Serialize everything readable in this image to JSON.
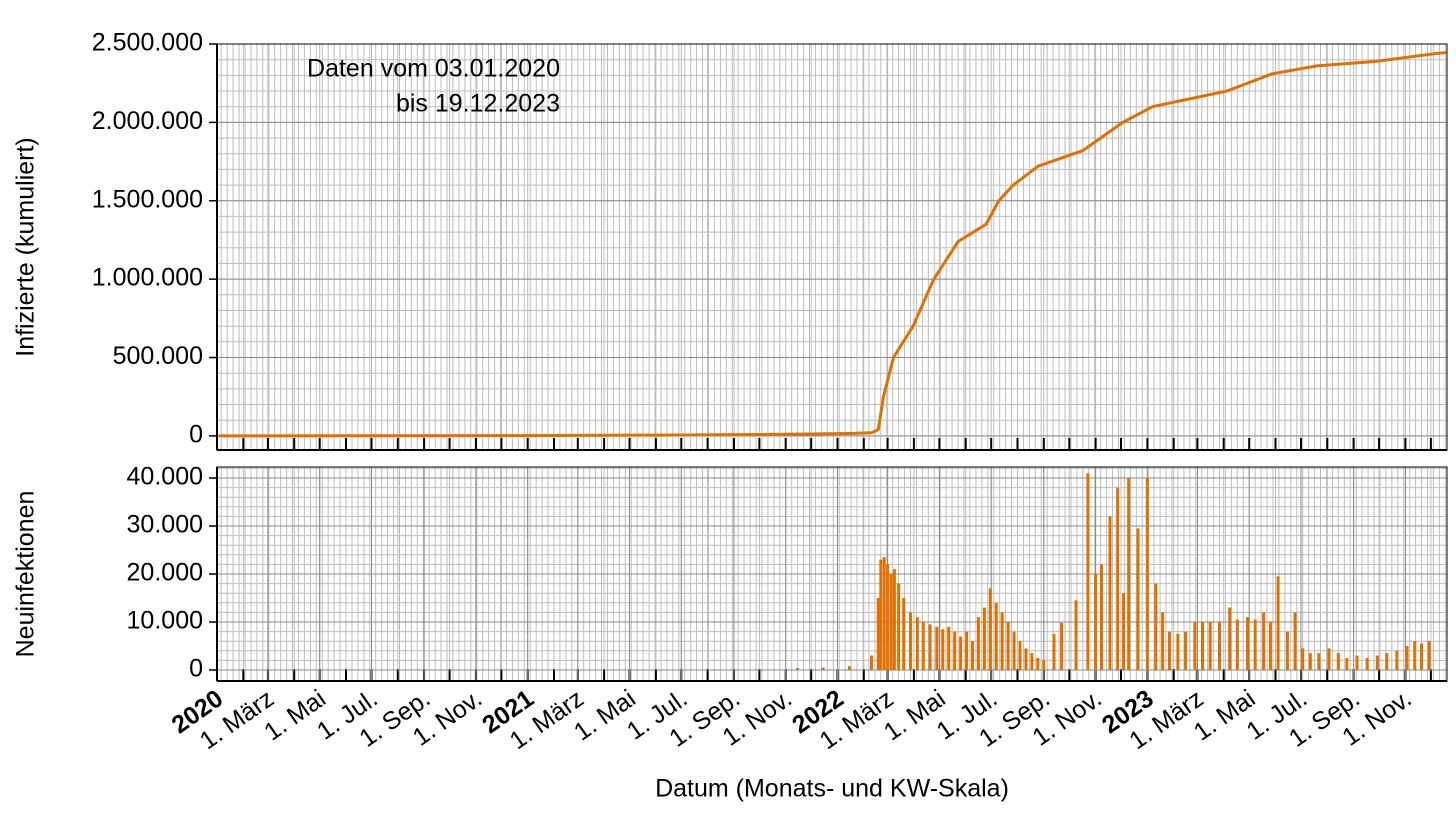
{
  "chart_data": [
    {
      "type": "line",
      "ylabel": "Infizierte (kumuliert)",
      "color": "#e07000",
      "annotation": [
        "Daten vom 03.01.2020",
        "bis 19.12.2023"
      ],
      "xlim": [
        "2020-01-01",
        "2023-12-20"
      ],
      "ylim": [
        -90000,
        2500000
      ],
      "yticks": [
        {
          "value": 0,
          "label": "0"
        },
        {
          "value": 500000,
          "label": "500.000"
        },
        {
          "value": 1000000,
          "label": "1.000.000"
        },
        {
          "value": 1500000,
          "label": "1.500.000"
        },
        {
          "value": 2000000,
          "label": "2.000.000"
        },
        {
          "value": 2500000,
          "label": "2.500.000"
        }
      ],
      "x": [
        "2020-01-03",
        "2020-06-01",
        "2021-01-01",
        "2021-06-01",
        "2021-11-01",
        "2022-01-15",
        "2022-02-10",
        "2022-02-18",
        "2022-02-24",
        "2022-03-08",
        "2022-03-31",
        "2022-04-24",
        "2022-05-23",
        "2022-06-25",
        "2022-07-10",
        "2022-07-27",
        "2022-08-25",
        "2022-10-17",
        "2022-12-03",
        "2023-01-07",
        "2023-04-05",
        "2023-05-28",
        "2023-07-20",
        "2023-09-29",
        "2023-12-08",
        "2023-12-19"
      ],
      "values": [
        0,
        500,
        2000,
        5000,
        10000,
        15000,
        20000,
        40000,
        250000,
        500000,
        700000,
        995000,
        1240000,
        1350000,
        1500000,
        1600000,
        1720000,
        1820000,
        2000000,
        2100000,
        2200000,
        2310000,
        2360000,
        2390000,
        2440000,
        2445000
      ]
    },
    {
      "type": "bar",
      "ylabel": "Neuinfektionen",
      "xlabel": "Datum (Monats- und KW-Skala)",
      "color": "#e07000",
      "xlim": [
        "2020-01-01",
        "2023-12-20"
      ],
      "ylim": [
        -2300,
        42300
      ],
      "yticks": [
        {
          "value": 0,
          "label": "0"
        },
        {
          "value": 10000,
          "label": "10.000"
        },
        {
          "value": 20000,
          "label": "20.000"
        },
        {
          "value": 30000,
          "label": "30.000"
        },
        {
          "value": 40000,
          "label": "40.000"
        }
      ],
      "xticks": [
        {
          "value": "2020-01-01",
          "label": "2020"
        },
        {
          "value": "2020-03-01",
          "label": "1. März"
        },
        {
          "value": "2020-05-01",
          "label": "1. Mai"
        },
        {
          "value": "2020-07-01",
          "label": "1. Jul."
        },
        {
          "value": "2020-09-01",
          "label": "1. Sep."
        },
        {
          "value": "2020-11-01",
          "label": "1. Nov."
        },
        {
          "value": "2021-01-01",
          "label": "2021"
        },
        {
          "value": "2021-03-01",
          "label": "1. März"
        },
        {
          "value": "2021-05-01",
          "label": "1. Mai"
        },
        {
          "value": "2021-07-01",
          "label": "1. Jul."
        },
        {
          "value": "2021-09-01",
          "label": "1. Sep."
        },
        {
          "value": "2021-11-01",
          "label": "1. Nov."
        },
        {
          "value": "2022-01-01",
          "label": "2022"
        },
        {
          "value": "2022-03-01",
          "label": "1. März"
        },
        {
          "value": "2022-05-01",
          "label": "1. Mai"
        },
        {
          "value": "2022-07-01",
          "label": "1. Jul."
        },
        {
          "value": "2022-09-01",
          "label": "1. Sep."
        },
        {
          "value": "2022-11-01",
          "label": "1. Nov."
        },
        {
          "value": "2023-01-01",
          "label": "2023"
        },
        {
          "value": "2023-03-01",
          "label": "1. März"
        },
        {
          "value": "2023-05-01",
          "label": "1. Mai"
        },
        {
          "value": "2023-07-01",
          "label": "1. Jul."
        },
        {
          "value": "2023-09-01",
          "label": "1. Sep."
        },
        {
          "value": "2023-11-01",
          "label": "1. Nov."
        }
      ],
      "x": [
        "2021-11-15",
        "2021-12-15",
        "2022-01-15",
        "2022-02-10",
        "2022-02-18",
        "2022-02-21",
        "2022-02-25",
        "2022-03-01",
        "2022-03-05",
        "2022-03-09",
        "2022-03-14",
        "2022-03-20",
        "2022-03-28",
        "2022-04-05",
        "2022-04-12",
        "2022-04-20",
        "2022-04-28",
        "2022-05-05",
        "2022-05-12",
        "2022-05-19",
        "2022-05-26",
        "2022-06-02",
        "2022-06-09",
        "2022-06-16",
        "2022-06-23",
        "2022-06-30",
        "2022-07-07",
        "2022-07-14",
        "2022-07-21",
        "2022-07-28",
        "2022-08-04",
        "2022-08-11",
        "2022-08-18",
        "2022-08-25",
        "2022-09-01",
        "2022-09-13",
        "2022-09-22",
        "2022-10-09",
        "2022-10-23",
        "2022-11-01",
        "2022-11-08",
        "2022-11-18",
        "2022-11-27",
        "2022-12-04",
        "2022-12-10",
        "2022-12-21",
        "2023-01-01",
        "2023-01-11",
        "2023-01-19",
        "2023-01-27",
        "2023-02-06",
        "2023-02-15",
        "2023-02-26",
        "2023-03-07",
        "2023-03-16",
        "2023-03-27",
        "2023-04-08",
        "2023-04-17",
        "2023-04-29",
        "2023-05-08",
        "2023-05-18",
        "2023-05-26",
        "2023-06-04",
        "2023-06-15",
        "2023-06-24",
        "2023-07-03",
        "2023-07-12",
        "2023-07-22",
        "2023-08-03",
        "2023-08-14",
        "2023-08-24",
        "2023-09-05",
        "2023-09-17",
        "2023-09-29",
        "2023-10-10",
        "2023-10-22",
        "2023-11-03",
        "2023-11-12",
        "2023-11-20",
        "2023-11-29"
      ],
      "values": [
        400,
        500,
        800,
        3000,
        15000,
        23000,
        23500,
        22000,
        20000,
        21000,
        18000,
        15000,
        12000,
        11000,
        10000,
        9500,
        9000,
        8500,
        9000,
        8000,
        7000,
        8000,
        6000,
        11000,
        13000,
        17000,
        14000,
        12000,
        10000,
        8000,
        6000,
        4500,
        3500,
        2500,
        2000,
        7500,
        9800,
        14500,
        41000,
        20000,
        22000,
        32000,
        38000,
        16000,
        40000,
        29500,
        40000,
        18000,
        12000,
        8000,
        7500,
        8000,
        10000,
        10000,
        10000,
        10000,
        13000,
        10500,
        11000,
        10500,
        12000,
        10000,
        19500,
        8000,
        12000,
        4500,
        3500,
        3500,
        4500,
        3500,
        2500,
        3000,
        2500,
        3000,
        3500,
        4000,
        5000,
        6000,
        5500,
        6000
      ]
    }
  ]
}
